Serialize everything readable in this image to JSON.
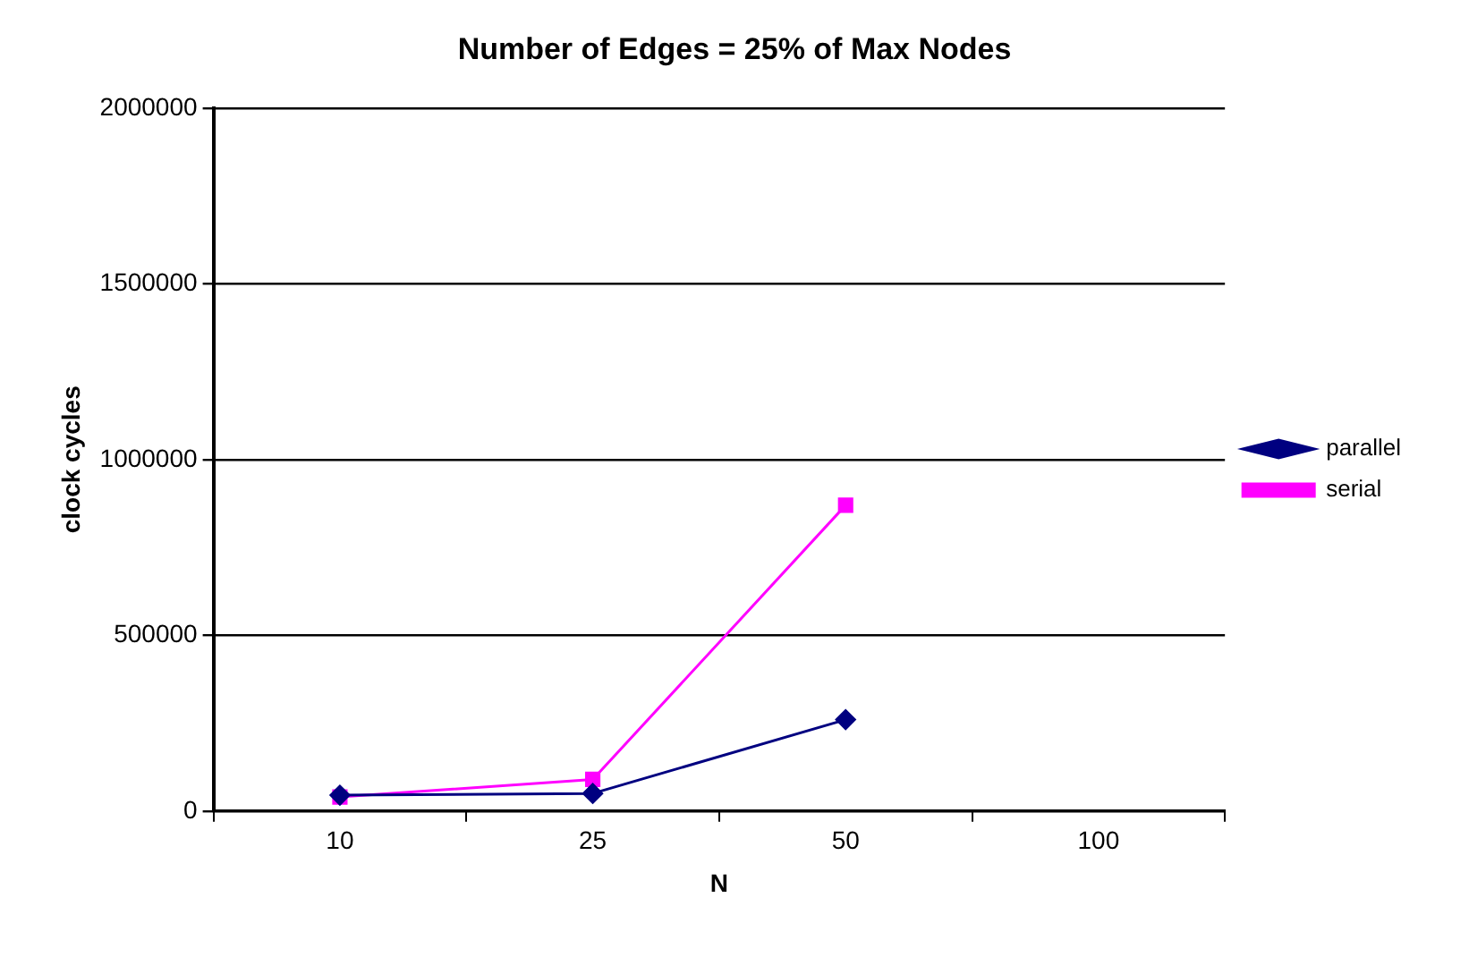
{
  "chart_data": {
    "type": "line",
    "title": "Number of Edges = 25% of Max Nodes",
    "xlabel": "N",
    "ylabel": "clock cycles",
    "categories": [
      "10",
      "25",
      "50",
      "100"
    ],
    "series": [
      {
        "name": "parallel",
        "color": "#000080",
        "marker": "diamond",
        "values": [
          45000,
          50000,
          260000,
          null
        ]
      },
      {
        "name": "serial",
        "color": "#ff00ff",
        "marker": "square",
        "values": [
          40000,
          90000,
          870000,
          null
        ]
      }
    ],
    "ylim": [
      0,
      2000000
    ],
    "yticks": [
      0,
      500000,
      1000000,
      1500000,
      2000000
    ],
    "grid": "y",
    "legend": "right"
  }
}
